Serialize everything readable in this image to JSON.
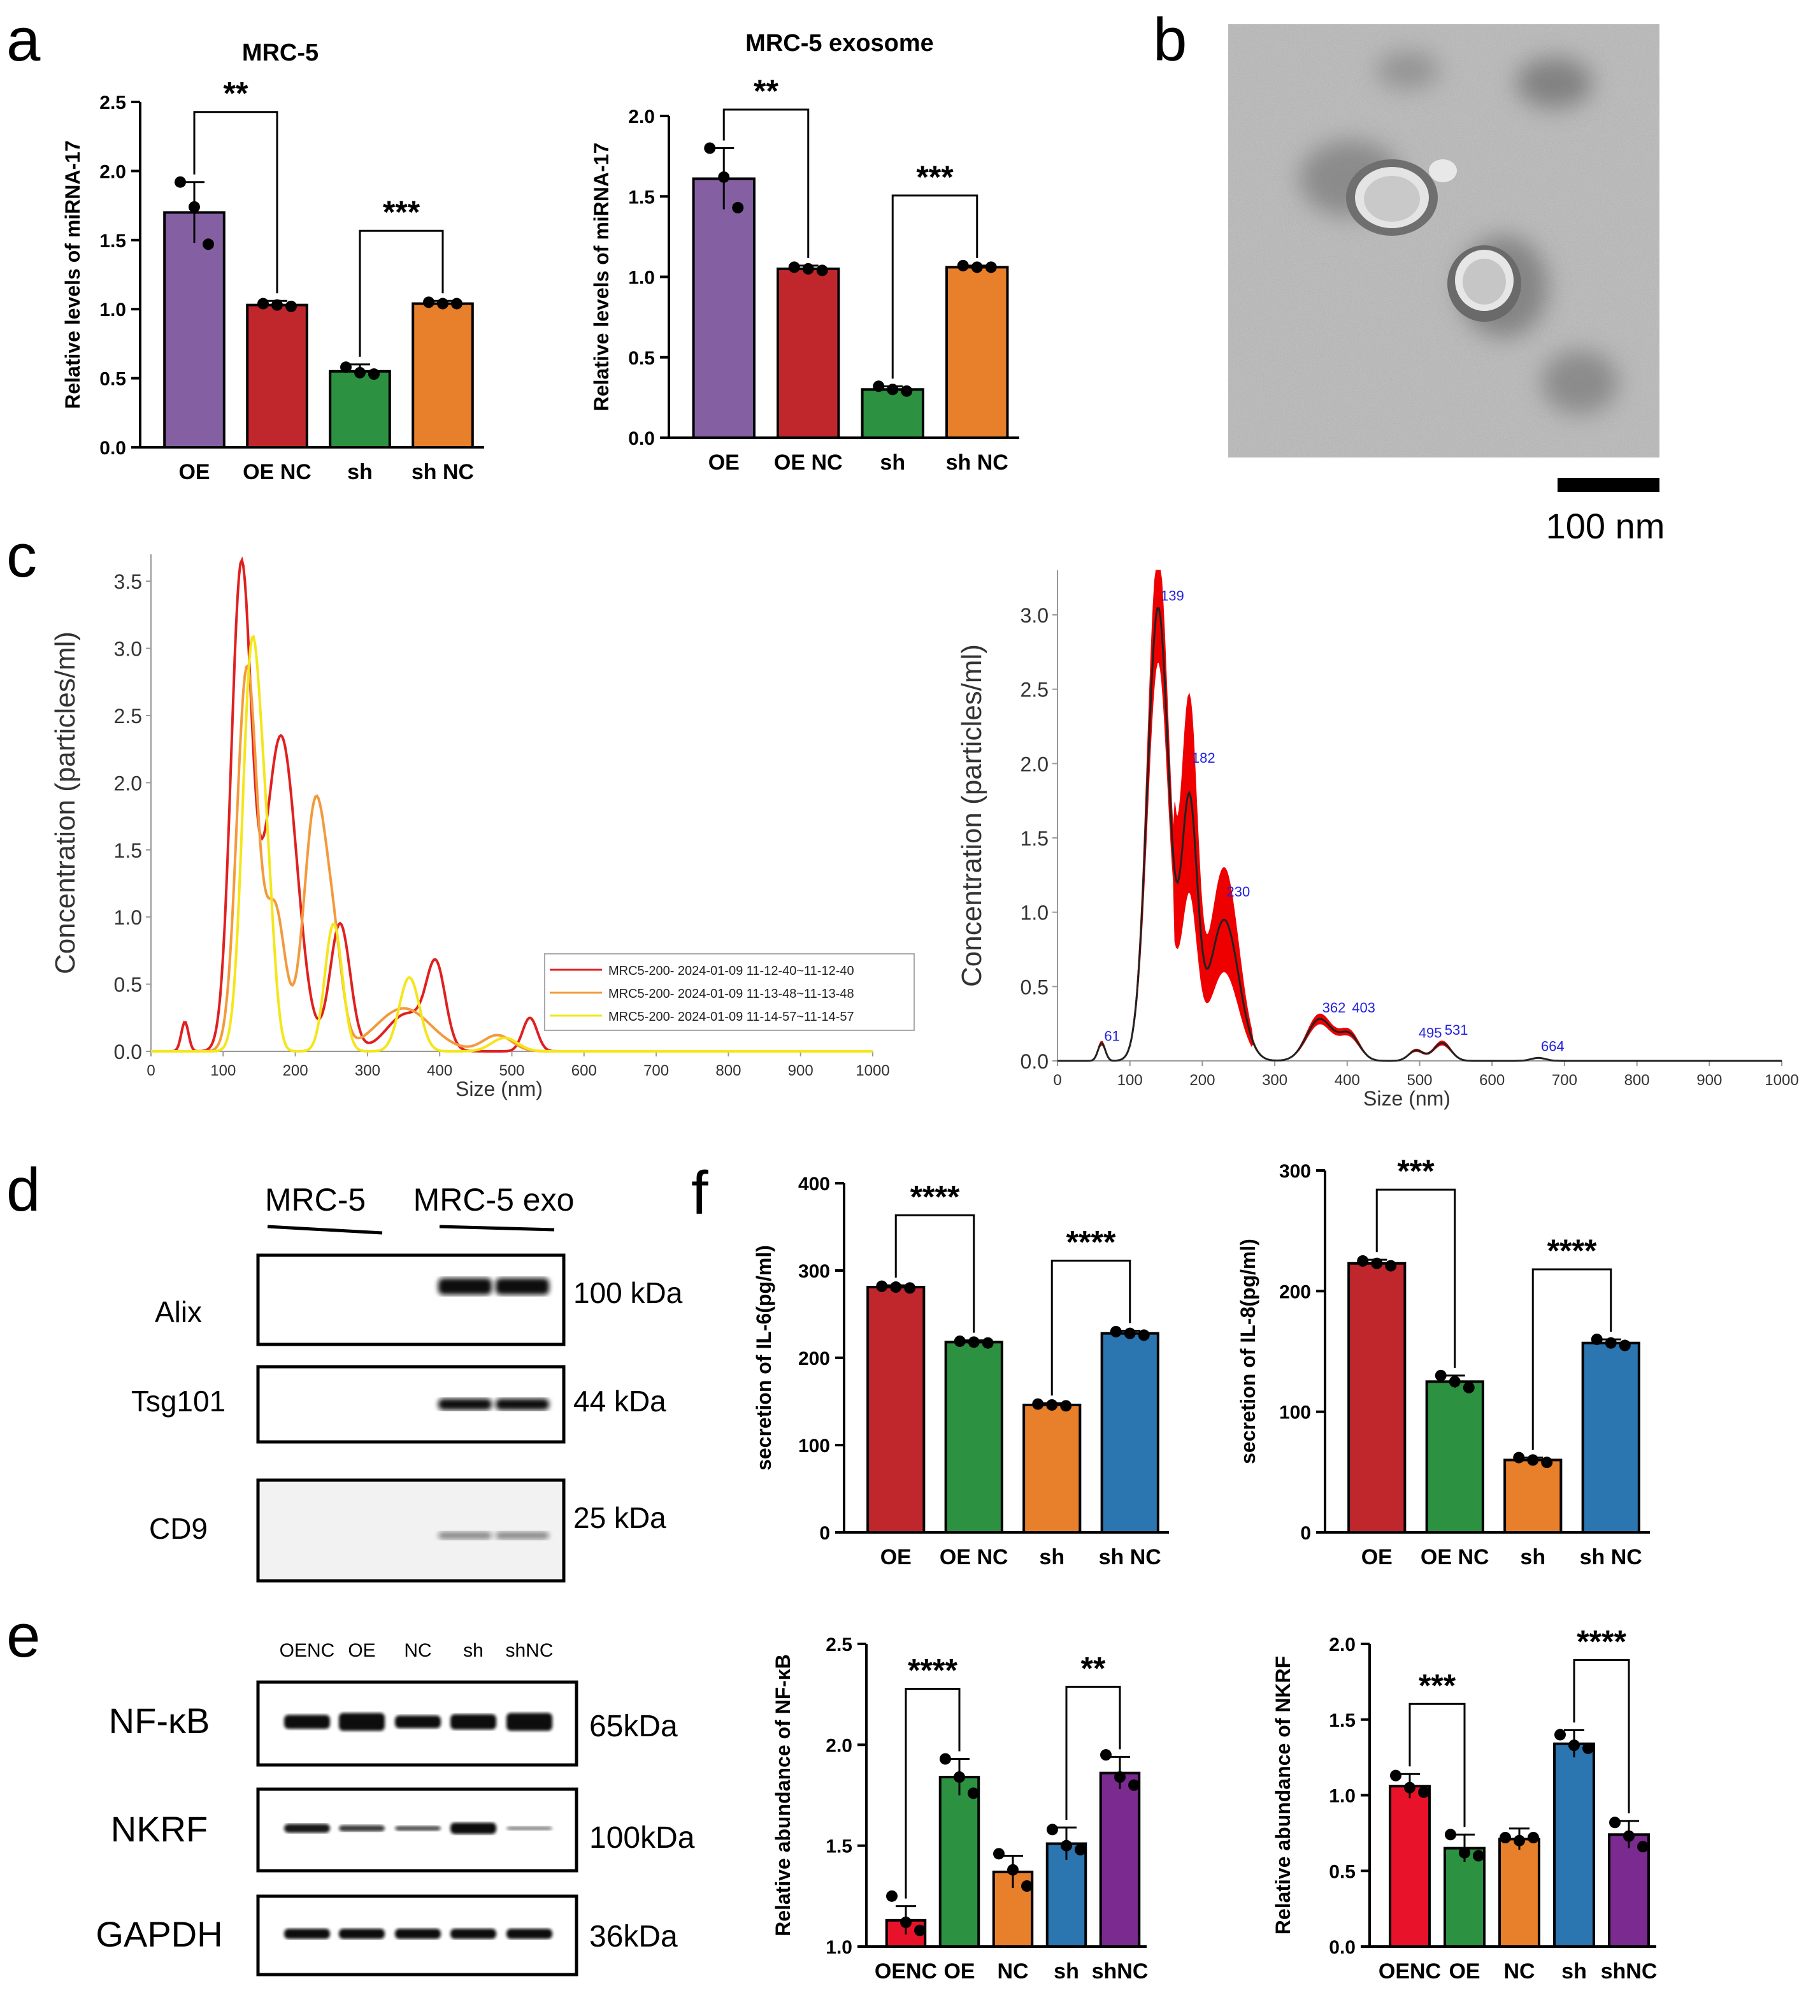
{
  "colors": {
    "purple": "#8460a3",
    "red": "#c0272d",
    "green": "#2c9140",
    "orange": "#e87f2a",
    "blue": "#2b75b0",
    "violet": "#7b2b90",
    "brightred": "#e8132a",
    "nta_red": "#e02020",
    "nta_orange": "#f39a3c",
    "nta_yellow": "#f4e61a",
    "peak_label": "#2222dd"
  },
  "panels": {
    "a": "a",
    "b": "b",
    "c": "c",
    "d": "d",
    "e": "e",
    "f": "f"
  },
  "tem": {
    "scale_label": "100 nm"
  },
  "western_d": {
    "headers": [
      "MRC-5",
      "MRC-5 exo"
    ],
    "rows": [
      {
        "label": "Alix",
        "kda": "100 kDa"
      },
      {
        "label": "Tsg101",
        "kda": "44 kDa"
      },
      {
        "label": "CD9",
        "kda": "25 kDa"
      }
    ]
  },
  "western_e": {
    "lanes": [
      "OENC",
      "OE",
      "NC",
      "sh",
      "shNC"
    ],
    "rows": [
      {
        "label": "NF-κB",
        "kda": "65kDa"
      },
      {
        "label": "NKRF",
        "kda": "100kDa"
      },
      {
        "label": "GAPDH",
        "kda": "36kDa"
      }
    ]
  },
  "chart_data": [
    {
      "id": "a1",
      "type": "bar",
      "title": "MRC-5",
      "ylabel": "Relative levels of miRNA-17",
      "xlabel": "",
      "categories": [
        "OE",
        "OE NC",
        "sh",
        "sh NC"
      ],
      "values": [
        1.7,
        1.03,
        0.55,
        1.04
      ],
      "errors": [
        0.22,
        0.03,
        0.05,
        0.02
      ],
      "points": [
        [
          1.92,
          1.74,
          1.47
        ],
        [
          1.04,
          1.03,
          1.02
        ],
        [
          0.58,
          0.54,
          0.53
        ],
        [
          1.05,
          1.04,
          1.04
        ]
      ],
      "ylim": [
        0,
        2.5
      ],
      "yticks": [
        "0.0",
        "0.5",
        "1.0",
        "1.5",
        "2.0",
        "2.5"
      ],
      "significance": [
        {
          "pair": [
            0,
            1
          ],
          "label": "**"
        },
        {
          "pair": [
            2,
            3
          ],
          "label": "***"
        }
      ]
    },
    {
      "id": "a2",
      "type": "bar",
      "title": "MRC-5  exosome",
      "ylabel": "Relative levels of miRNA-17",
      "xlabel": "",
      "categories": [
        "OE",
        "OE NC",
        "sh",
        "sh NC"
      ],
      "values": [
        1.61,
        1.05,
        0.3,
        1.06
      ],
      "errors": [
        0.19,
        0.02,
        0.02,
        0.01
      ],
      "points": [
        [
          1.8,
          1.62,
          1.43
        ],
        [
          1.06,
          1.05,
          1.04
        ],
        [
          0.32,
          0.3,
          0.29
        ],
        [
          1.07,
          1.06,
          1.06
        ]
      ],
      "ylim": [
        0,
        2.0
      ],
      "yticks": [
        "0.0",
        "0.5",
        "1.0",
        "1.5",
        "2.0"
      ],
      "significance": [
        {
          "pair": [
            0,
            1
          ],
          "label": "**"
        },
        {
          "pair": [
            2,
            3
          ],
          "label": "***"
        }
      ]
    },
    {
      "id": "c1",
      "type": "line",
      "xlabel": "Size (nm)",
      "ylabel": "Concentration  (particles/ml)",
      "xlim": [
        0,
        1000
      ],
      "ylim": [
        0,
        3.7
      ],
      "xticks": [
        "0",
        "100",
        "200",
        "300",
        "400",
        "500",
        "600",
        "700",
        "800",
        "900",
        "1000"
      ],
      "yticks": [
        "0.0",
        "0.5",
        "1.0",
        "1.5",
        "2.0",
        "2.5",
        "3.0",
        "3.5"
      ],
      "legend_position": "bottom-right",
      "series": [
        {
          "name": "MRC5-200- 2024-01-09 11-12-40~11-12-40",
          "peaks": [
            [
              47,
              0.22,
              5
            ],
            [
              125,
              3.55,
              14
            ],
            [
              180,
              2.35,
              22
            ],
            [
              262,
              0.95,
              14
            ],
            [
              355,
              0.28,
              28
            ],
            [
              395,
              0.58,
              13
            ],
            [
              525,
              0.25,
              10
            ]
          ]
        },
        {
          "name": "MRC5-200- 2024-01-09 11-13-48~11-13-48",
          "peaks": [
            [
              133,
              2.85,
              14
            ],
            [
              172,
              1.05,
              14
            ],
            [
              228,
              1.85,
              16
            ],
            [
              255,
              0.55,
              12
            ],
            [
              350,
              0.32,
              38
            ],
            [
              480,
              0.12,
              20
            ]
          ]
        },
        {
          "name": "MRC5-200- 2024-01-09 11-14-57~11-14-57",
          "peaks": [
            [
              140,
              3.0,
              13
            ],
            [
              162,
              0.9,
              10
            ],
            [
              253,
              0.95,
              12
            ],
            [
              358,
              0.55,
              14
            ],
            [
              490,
              0.1,
              18
            ]
          ]
        }
      ]
    },
    {
      "id": "c2",
      "type": "line",
      "xlabel": "Size (nm)",
      "ylabel": "Concentration  (particles/ml)",
      "xlim": [
        0,
        1000
      ],
      "ylim": [
        0,
        3.3
      ],
      "xticks": [
        "0",
        "100",
        "200",
        "300",
        "400",
        "500",
        "600",
        "700",
        "800",
        "900",
        "1000"
      ],
      "yticks": [
        "0.0",
        "0.5",
        "1.0",
        "1.5",
        "2.0",
        "2.5",
        "3.0"
      ],
      "peaks": [
        [
          61,
          0.12,
          5
        ],
        [
          139,
          3.05,
          15
        ],
        [
          182,
          1.7,
          11
        ],
        [
          230,
          0.95,
          20
        ],
        [
          362,
          0.28,
          18
        ],
        [
          403,
          0.17,
          14
        ],
        [
          495,
          0.07,
          10
        ],
        [
          531,
          0.12,
          12
        ],
        [
          664,
          0.02,
          10
        ]
      ],
      "peak_labels": [
        "61",
        "139",
        "182",
        "230",
        "362",
        "403",
        "495",
        "531",
        "664"
      ],
      "peak_label_x": [
        61,
        139,
        182,
        230,
        362,
        403,
        495,
        531,
        664
      ],
      "peak_label_y": [
        0.11,
        3.07,
        1.98,
        1.08,
        0.3,
        0.3,
        0.13,
        0.15,
        0.04
      ]
    },
    {
      "id": "f1",
      "type": "bar",
      "ylabel": "secretion of IL-6(pg/ml)",
      "xlabel": "",
      "categories": [
        "OE",
        "OE NC",
        "sh",
        "sh NC"
      ],
      "values": [
        281,
        218,
        146,
        228
      ],
      "errors": [
        2,
        2,
        2,
        3
      ],
      "points": [
        [
          282,
          281,
          280
        ],
        [
          219,
          218,
          217
        ],
        [
          147,
          146,
          145
        ],
        [
          230,
          228,
          226
        ]
      ],
      "ylim": [
        0,
        400
      ],
      "yticks": [
        "0",
        "100",
        "200",
        "300",
        "400"
      ],
      "significance": [
        {
          "pair": [
            0,
            1
          ],
          "label": "****"
        },
        {
          "pair": [
            2,
            3
          ],
          "label": "****"
        }
      ]
    },
    {
      "id": "f2",
      "type": "bar",
      "ylabel": "secretion of IL-8(pg/ml)",
      "xlabel": "",
      "categories": [
        "OE",
        "OE NC",
        "sh",
        "sh NC"
      ],
      "values": [
        223,
        125,
        60,
        157
      ],
      "errors": [
        3,
        5,
        2,
        3
      ],
      "points": [
        [
          225,
          223,
          221
        ],
        [
          130,
          125,
          120
        ],
        [
          62,
          60,
          58
        ],
        [
          160,
          157,
          155
        ]
      ],
      "ylim": [
        0,
        300
      ],
      "yticks": [
        "0",
        "100",
        "200",
        "300"
      ],
      "significance": [
        {
          "pair": [
            0,
            1
          ],
          "label": "***"
        },
        {
          "pair": [
            2,
            3
          ],
          "label": "****"
        }
      ]
    },
    {
      "id": "e1",
      "type": "bar",
      "ylabel": "Relative abundance of NF-κB",
      "xlabel": "",
      "categories": [
        "OENC",
        "OE",
        "NC",
        "sh",
        "shNC"
      ],
      "values": [
        1.13,
        1.84,
        1.37,
        1.51,
        1.86
      ],
      "errors": [
        0.07,
        0.09,
        0.08,
        0.08,
        0.08
      ],
      "points": [
        [
          1.25,
          1.12,
          1.08
        ],
        [
          1.93,
          1.84,
          1.76
        ],
        [
          1.46,
          1.38,
          1.3
        ],
        [
          1.58,
          1.5,
          1.48
        ],
        [
          1.95,
          1.84,
          1.8
        ]
      ],
      "ylim": [
        1.0,
        2.5
      ],
      "yticks": [
        "1.0",
        "1.5",
        "2.0",
        "2.5"
      ],
      "significance": [
        {
          "pair": [
            0,
            1
          ],
          "label": "****"
        },
        {
          "pair": [
            3,
            4
          ],
          "label": "**"
        }
      ]
    },
    {
      "id": "e2",
      "type": "bar",
      "ylabel": "Relative abundance of NKRF",
      "xlabel": "",
      "categories": [
        "OENC",
        "OE",
        "NC",
        "sh",
        "shNC"
      ],
      "values": [
        1.06,
        0.65,
        0.71,
        1.34,
        0.74
      ],
      "errors": [
        0.08,
        0.09,
        0.07,
        0.09,
        0.09
      ],
      "points": [
        [
          1.13,
          1.05,
          1.02
        ],
        [
          0.74,
          0.62,
          0.6
        ],
        [
          0.72,
          0.7,
          0.72
        ],
        [
          1.4,
          1.33,
          1.31
        ],
        [
          0.82,
          0.73,
          0.66
        ]
      ],
      "ylim": [
        0.0,
        2.0
      ],
      "yticks": [
        "0.0",
        "0.5",
        "1.0",
        "1.5",
        "2.0"
      ],
      "significance": [
        {
          "pair": [
            0,
            1
          ],
          "label": "***"
        },
        {
          "pair": [
            3,
            4
          ],
          "label": "****"
        }
      ]
    }
  ]
}
